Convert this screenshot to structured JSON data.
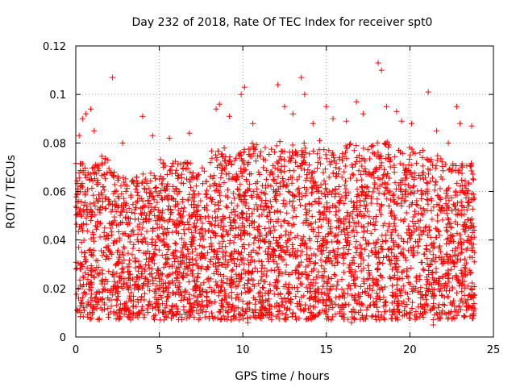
{
  "chart_data": {
    "type": "scatter",
    "title": "Day 232 of 2018, Rate Of TEC Index for receiver spt0",
    "xlabel": "GPS time / hours",
    "ylabel": "ROTI / TECUs",
    "xlim": [
      0,
      25
    ],
    "ylim": [
      0,
      0.12
    ],
    "xticks": [
      0,
      5,
      10,
      15,
      20,
      25
    ],
    "xtick_labels": [
      "0",
      "5",
      "10",
      "15",
      "20",
      "25"
    ],
    "yticks": [
      0,
      0.02,
      0.04,
      0.06,
      0.08,
      0.1,
      0.12
    ],
    "ytick_labels": [
      "0",
      "0.02",
      "0.04",
      "0.06",
      "0.08",
      "0.1",
      "0.12"
    ],
    "grid": true,
    "marker": "+",
    "series_color": "#ff0000",
    "x_range_observed": [
      0,
      23.9
    ],
    "series": [
      {
        "name": "ROTI",
        "points": [
          [
            0.2,
            0.083
          ],
          [
            0.4,
            0.09
          ],
          [
            0.6,
            0.092
          ],
          [
            0.9,
            0.094
          ],
          [
            1.1,
            0.085
          ],
          [
            2.2,
            0.107
          ],
          [
            2.8,
            0.08
          ],
          [
            4.0,
            0.091
          ],
          [
            4.6,
            0.083
          ],
          [
            5.6,
            0.082
          ],
          [
            6.8,
            0.084
          ],
          [
            8.4,
            0.094
          ],
          [
            8.6,
            0.096
          ],
          [
            9.2,
            0.091
          ],
          [
            9.9,
            0.1
          ],
          [
            10.1,
            0.103
          ],
          [
            10.6,
            0.088
          ],
          [
            12.1,
            0.104
          ],
          [
            12.5,
            0.095
          ],
          [
            13.0,
            0.092
          ],
          [
            13.5,
            0.107
          ],
          [
            13.7,
            0.1
          ],
          [
            14.2,
            0.088
          ],
          [
            14.6,
            0.081
          ],
          [
            15.0,
            0.095
          ],
          [
            15.4,
            0.09
          ],
          [
            16.2,
            0.089
          ],
          [
            16.8,
            0.097
          ],
          [
            17.2,
            0.092
          ],
          [
            18.1,
            0.113
          ],
          [
            18.3,
            0.11
          ],
          [
            18.6,
            0.095
          ],
          [
            19.2,
            0.093
          ],
          [
            19.5,
            0.089
          ],
          [
            20.1,
            0.088
          ],
          [
            21.1,
            0.101
          ],
          [
            21.6,
            0.085
          ],
          [
            22.3,
            0.08
          ],
          [
            22.8,
            0.095
          ],
          [
            23.0,
            0.088
          ],
          [
            23.7,
            0.087
          ],
          [
            0.3,
            0.015
          ],
          [
            1.5,
            0.012
          ],
          [
            2.5,
            0.018
          ],
          [
            3.2,
            0.008
          ],
          [
            5.2,
            0.01
          ],
          [
            7.4,
            0.02
          ],
          [
            9.6,
            0.012
          ],
          [
            10.3,
            0.006
          ],
          [
            11.6,
            0.009
          ],
          [
            14.8,
            0.014
          ],
          [
            16.5,
            0.006
          ],
          [
            18.8,
            0.011
          ],
          [
            21.4,
            0.005
          ],
          [
            22.6,
            0.008
          ],
          [
            23.5,
            0.012
          ]
        ]
      }
    ]
  }
}
